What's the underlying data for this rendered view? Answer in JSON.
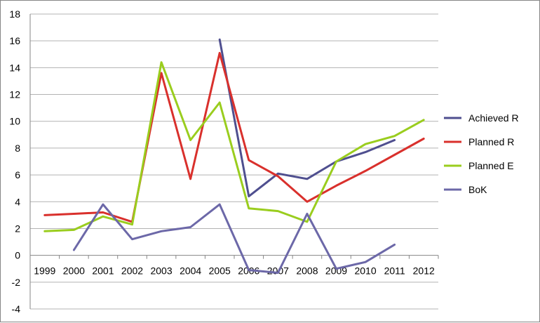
{
  "chart_data": {
    "type": "line",
    "title": "",
    "xlabel": "",
    "ylabel": "",
    "ylim": [
      -4,
      18
    ],
    "y_ticks": [
      18,
      16,
      14,
      12,
      10,
      8,
      6,
      4,
      2,
      0,
      -2,
      -4
    ],
    "grid": "horizontal",
    "legend_position": "right",
    "categories": [
      "1999",
      "2000",
      "2001",
      "2002",
      "2003",
      "2004",
      "2005",
      "2006",
      "2007",
      "2008",
      "2009",
      "2010",
      "2011",
      "2012"
    ],
    "series": [
      {
        "name": "Achieved R",
        "color": "#4F4F8F",
        "values": [
          null,
          null,
          null,
          null,
          null,
          null,
          16.1,
          4.4,
          6.1,
          5.7,
          7.0,
          7.7,
          8.6,
          null
        ]
      },
      {
        "name": "Planned R",
        "color": "#D9302C",
        "values": [
          3.0,
          3.1,
          3.2,
          2.5,
          13.6,
          5.7,
          15.1,
          7.1,
          5.9,
          4.0,
          5.2,
          6.3,
          7.5,
          8.7
        ]
      },
      {
        "name": "Planned E",
        "color": "#9ACD1E",
        "values": [
          1.8,
          1.9,
          2.9,
          2.3,
          14.4,
          8.6,
          11.4,
          3.5,
          3.3,
          2.5,
          7.0,
          8.3,
          8.9,
          10.1
        ]
      },
      {
        "name": "BoK",
        "color": "#6C68A8",
        "values": [
          null,
          0.4,
          3.8,
          1.2,
          1.8,
          2.1,
          3.8,
          -1.1,
          -1.3,
          3.1,
          -1.0,
          -0.5,
          0.8,
          null
        ]
      }
    ]
  }
}
